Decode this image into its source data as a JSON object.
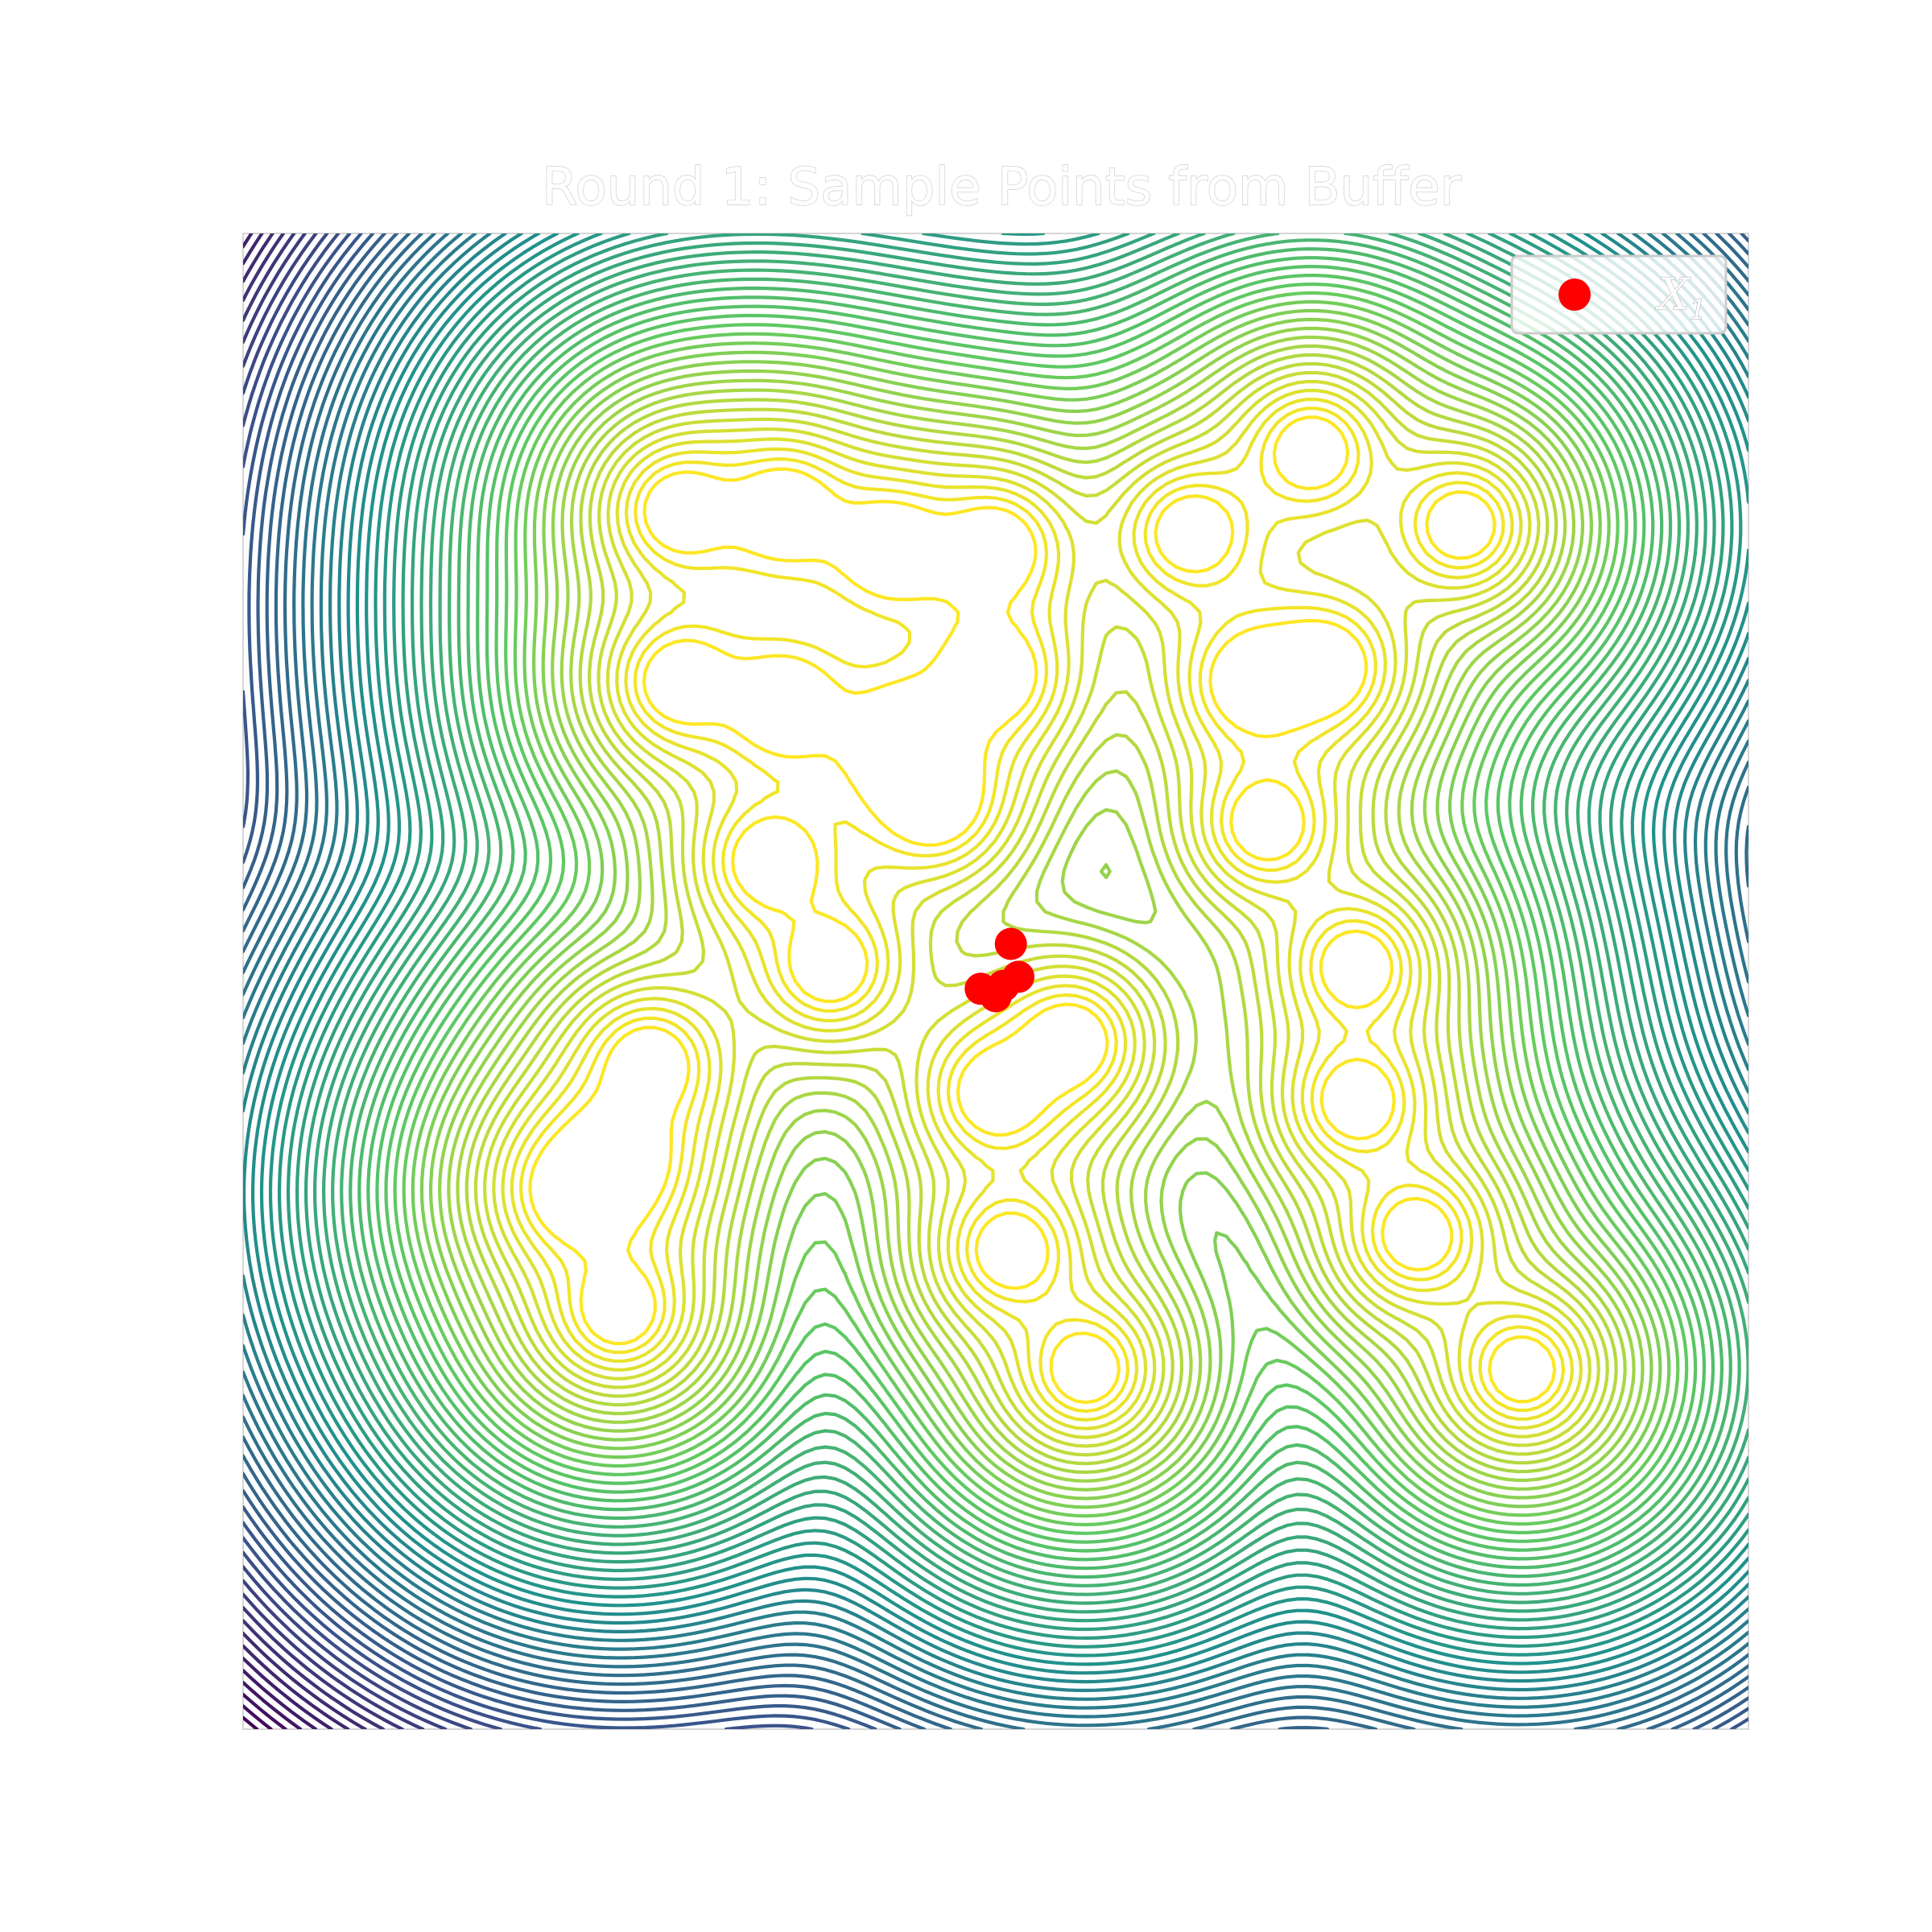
{
  "chart_data": {
    "type": "contour",
    "title": "Round 1: Sample Points from Buffer",
    "xlabel": "",
    "ylabel": "",
    "xlim": [
      0,
      1
    ],
    "ylim": [
      0,
      1
    ],
    "colormap": "viridis",
    "levels": 60,
    "grid": false,
    "axis_ticks": false,
    "legend": {
      "position": "top-right",
      "entries": [
        {
          "label": "X1",
          "marker": "circle",
          "color": "#ff0000"
        }
      ]
    },
    "basins": [
      [
        0.29,
        0.815
      ],
      [
        0.36,
        0.815
      ],
      [
        0.43,
        0.79
      ],
      [
        0.5,
        0.79
      ],
      [
        0.5,
        0.705
      ],
      [
        0.63,
        0.8
      ],
      [
        0.71,
        0.855
      ],
      [
        0.81,
        0.805
      ],
      [
        0.67,
        0.7
      ],
      [
        0.68,
        0.605
      ],
      [
        0.72,
        0.71
      ],
      [
        0.29,
        0.7
      ],
      [
        0.36,
        0.685
      ],
      [
        0.44,
        0.66
      ],
      [
        0.46,
        0.62
      ],
      [
        0.35,
        0.58
      ],
      [
        0.39,
        0.51
      ],
      [
        0.27,
        0.445
      ],
      [
        0.22,
        0.36
      ],
      [
        0.25,
        0.38
      ],
      [
        0.25,
        0.28
      ],
      [
        0.51,
        0.32
      ],
      [
        0.56,
        0.24
      ],
      [
        0.74,
        0.51
      ],
      [
        0.74,
        0.42
      ],
      [
        0.78,
        0.33
      ],
      [
        0.85,
        0.24
      ],
      [
        0.5,
        0.425
      ],
      [
        0.55,
        0.46
      ]
    ],
    "points": {
      "name": "X1",
      "x": [
        0.51,
        0.49,
        0.5,
        0.505,
        0.515
      ],
      "y": [
        0.525,
        0.495,
        0.49,
        0.497,
        0.503
      ]
    }
  }
}
